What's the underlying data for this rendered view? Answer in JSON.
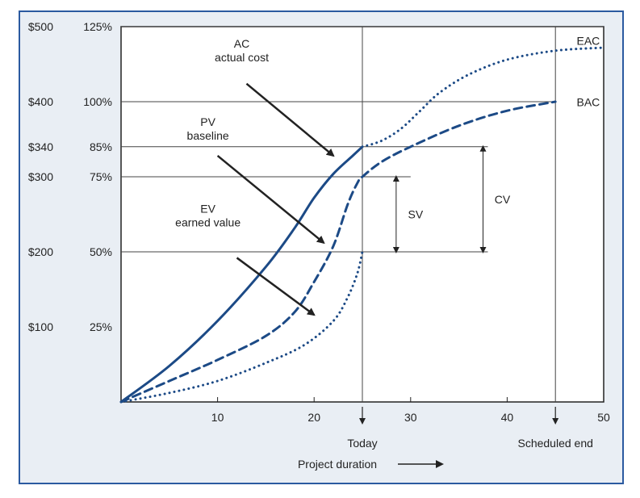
{
  "colors": {
    "frame_border": "#2b5aa0",
    "background": "#e9eef4",
    "plot_bg": "#ffffff",
    "series": "#1c4a86",
    "grid": "#444444",
    "text": "#222222"
  },
  "chart_data": {
    "type": "line",
    "xlabel": "Project duration",
    "xlim": [
      0,
      50
    ],
    "ylim": [
      0,
      125
    ],
    "x_ticks": [
      {
        "value": 10,
        "label": "10"
      },
      {
        "value": 20,
        "label": "20"
      },
      {
        "value": 30,
        "label": "30"
      },
      {
        "value": 40,
        "label": "40"
      },
      {
        "value": 50,
        "label": "50"
      }
    ],
    "y_ticks": [
      {
        "value": 125,
        "dollar": "$500",
        "pct": "125%"
      },
      {
        "value": 100,
        "dollar": "$400",
        "pct": "100%"
      },
      {
        "value": 85,
        "dollar": "$340",
        "pct": "85%"
      },
      {
        "value": 75,
        "dollar": "$300",
        "pct": "75%"
      },
      {
        "value": 50,
        "dollar": "$200",
        "pct": "50%"
      },
      {
        "value": 25,
        "dollar": "$100",
        "pct": "25%"
      }
    ],
    "markers": [
      {
        "x": 25,
        "label": "Today"
      },
      {
        "x": 45,
        "label": "Scheduled end"
      }
    ],
    "series": [
      {
        "key": "AC",
        "style": "solid",
        "width": 3,
        "points": [
          [
            0,
            0
          ],
          [
            5,
            12
          ],
          [
            10,
            27
          ],
          [
            15,
            45
          ],
          [
            18,
            58
          ],
          [
            20,
            68
          ],
          [
            22,
            76
          ],
          [
            24,
            82
          ],
          [
            25,
            85
          ]
        ]
      },
      {
        "key": "PV",
        "style": "dashed",
        "width": 3,
        "points": [
          [
            0,
            0
          ],
          [
            5,
            7
          ],
          [
            10,
            14
          ],
          [
            15,
            22
          ],
          [
            18,
            30
          ],
          [
            20,
            40
          ],
          [
            22,
            52
          ],
          [
            23.5,
            66
          ],
          [
            24.5,
            73
          ],
          [
            25,
            75
          ],
          [
            27,
            80
          ],
          [
            30,
            85
          ],
          [
            35,
            92
          ],
          [
            40,
            97
          ],
          [
            45,
            100
          ]
        ]
      },
      {
        "key": "EV",
        "style": "dotted",
        "width": 3,
        "points": [
          [
            0,
            0
          ],
          [
            5,
            3
          ],
          [
            10,
            7
          ],
          [
            15,
            13
          ],
          [
            19,
            19
          ],
          [
            22,
            27
          ],
          [
            23.5,
            35
          ],
          [
            24.5,
            43
          ],
          [
            25,
            50
          ]
        ]
      },
      {
        "key": "EAC",
        "style": "dotted",
        "width": 3,
        "points": [
          [
            25,
            85
          ],
          [
            27,
            87
          ],
          [
            29,
            91
          ],
          [
            31,
            97
          ],
          [
            33,
            103
          ],
          [
            36,
            109
          ],
          [
            40,
            114
          ],
          [
            45,
            117
          ],
          [
            50,
            118
          ]
        ]
      }
    ],
    "reference_lines": [
      {
        "y": 125,
        "x_end": 50
      },
      {
        "y": 100,
        "x_end": 45
      },
      {
        "y": 85,
        "x_end": 38
      },
      {
        "y": 75,
        "x_end": 30
      },
      {
        "y": 50,
        "x_end": 38
      }
    ],
    "variances": [
      {
        "label": "SV",
        "x": 28.5,
        "y_from": 50,
        "y_to": 75
      },
      {
        "label": "CV",
        "x": 37.5,
        "y_from": 50,
        "y_to": 85
      }
    ],
    "annotations": [
      {
        "key": "AC",
        "lines": [
          "AC",
          "actual cost"
        ],
        "text_x": 12.5,
        "text_y": 118,
        "arrow_from": [
          13,
          106
        ],
        "arrow_to": [
          22,
          82
        ]
      },
      {
        "key": "PV",
        "lines": [
          "PV",
          "baseline"
        ],
        "text_x": 9,
        "text_y": 92,
        "arrow_from": [
          10,
          82
        ],
        "arrow_to": [
          21,
          53
        ]
      },
      {
        "key": "EV",
        "lines": [
          "EV",
          "earned value"
        ],
        "text_x": 9,
        "text_y": 63,
        "arrow_from": [
          12,
          48
        ],
        "arrow_to": [
          20,
          29
        ]
      },
      {
        "key": "EAC",
        "lines": [
          "EAC"
        ],
        "text_x": 47.2,
        "text_y": 119,
        "arrow_from": null,
        "arrow_to": null
      },
      {
        "key": "BAC",
        "lines": [
          "BAC"
        ],
        "text_x": 47.2,
        "text_y": 98.5,
        "arrow_from": null,
        "arrow_to": null
      }
    ]
  }
}
